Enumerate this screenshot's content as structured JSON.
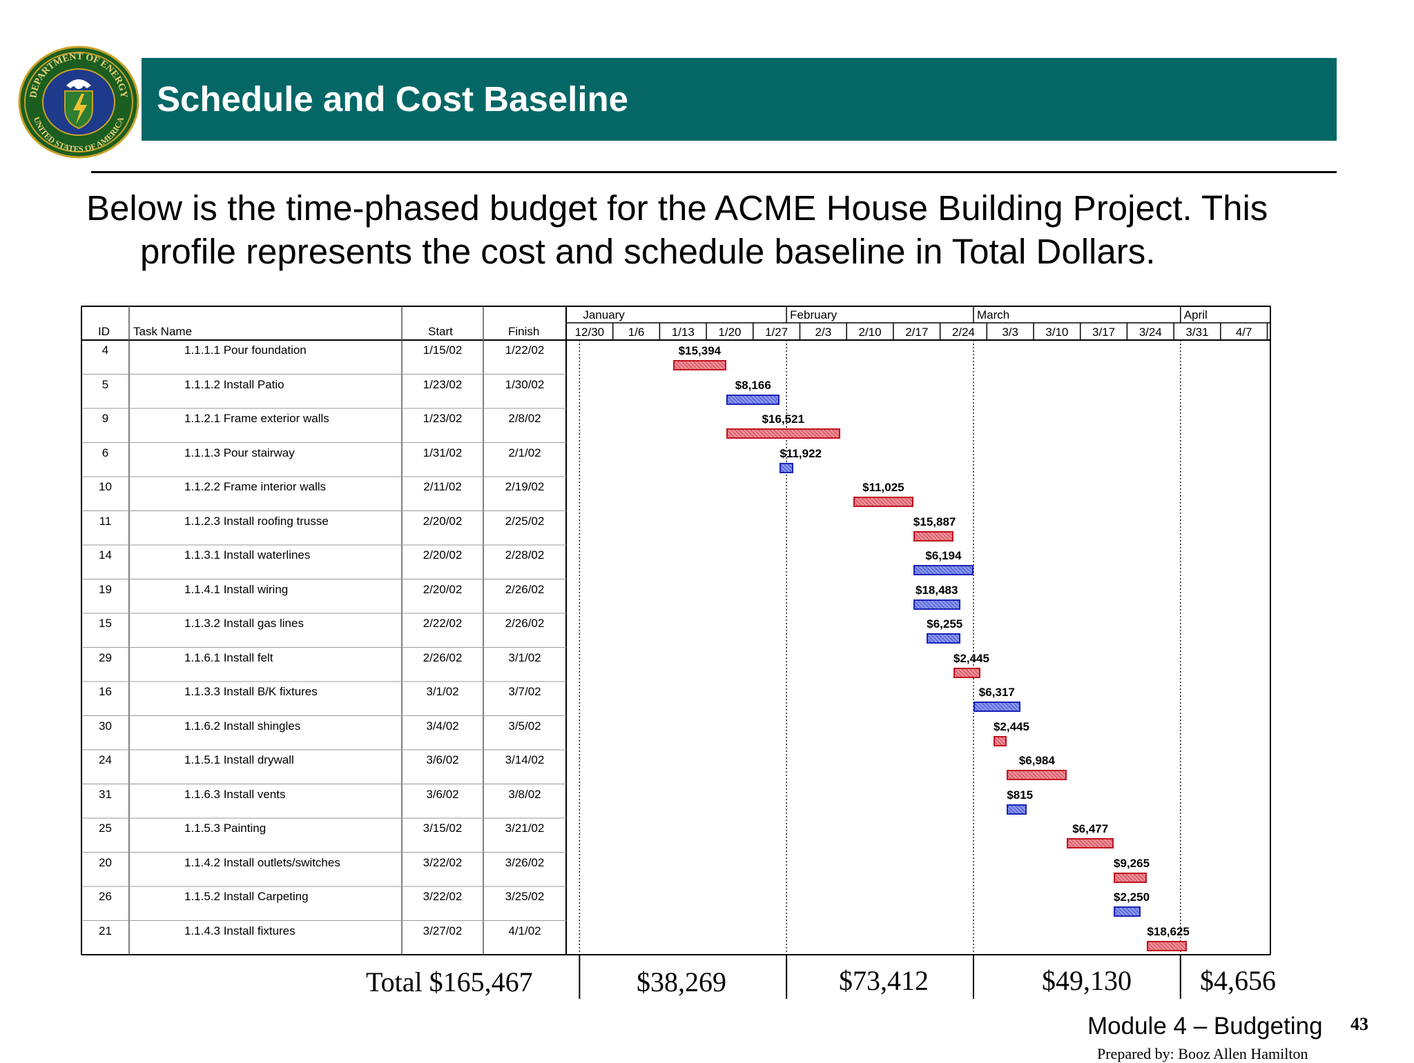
{
  "slide": {
    "title": "Schedule and Cost Baseline",
    "intro_line1": "Below is the time-phased budget for the ACME House Building Project.  This",
    "intro_line2": "profile represents the cost and schedule baseline in Total Dollars.",
    "seal_text_top": "DEPARTMENT OF ENERGY",
    "seal_text_bottom": "UNITED STATES OF AMERICA",
    "footer_module": "Module 4 – Budgeting",
    "footer_page": "43",
    "footer_prepared": "Prepared by: Booz Allen Hamilton",
    "colors": {
      "title_bar": "#046766",
      "red_bar": "#e0606b",
      "blue_bar": "#5a6ae0"
    }
  },
  "gantt": {
    "headers": {
      "id": "ID",
      "task": "Task Name",
      "start": "Start",
      "finish": "Finish"
    },
    "months": [
      "January",
      "February",
      "March",
      "April"
    ],
    "weeks": [
      "12/30",
      "1/6",
      "1/13",
      "1/20",
      "1/27",
      "2/3",
      "2/10",
      "2/17",
      "2/24",
      "3/3",
      "3/10",
      "3/17",
      "3/24",
      "3/31",
      "4/7"
    ],
    "rows": [
      {
        "id": "4",
        "task": "1.1.1.1 Pour foundation",
        "start": "1/15/02",
        "finish": "1/22/02",
        "cost": "$15,394",
        "color": "red"
      },
      {
        "id": "5",
        "task": "1.1.1.2 Install Patio",
        "start": "1/23/02",
        "finish": "1/30/02",
        "cost": "$8,166",
        "color": "blue"
      },
      {
        "id": "9",
        "task": "1.1.2.1 Frame exterior walls",
        "start": "1/23/02",
        "finish": "2/8/02",
        "cost": "$16,521",
        "color": "red"
      },
      {
        "id": "6",
        "task": "1.1.1.3 Pour stairway",
        "start": "1/31/02",
        "finish": "2/1/02",
        "cost": "$11,922",
        "color": "blue"
      },
      {
        "id": "10",
        "task": "1.1.2.2 Frame interior walls",
        "start": "2/11/02",
        "finish": "2/19/02",
        "cost": "$11,025",
        "color": "red"
      },
      {
        "id": "11",
        "task": "1.1.2.3 Install roofing trusse",
        "start": "2/20/02",
        "finish": "2/25/02",
        "cost": "$15,887",
        "color": "red"
      },
      {
        "id": "14",
        "task": "1.1.3.1 Install waterlines",
        "start": "2/20/02",
        "finish": "2/28/02",
        "cost": "$6,194",
        "color": "blue"
      },
      {
        "id": "19",
        "task": "1.1.4.1 Install wiring",
        "start": "2/20/02",
        "finish": "2/26/02",
        "cost": "$18,483",
        "color": "blue"
      },
      {
        "id": "15",
        "task": "1.1.3.2 Install gas lines",
        "start": "2/22/02",
        "finish": "2/26/02",
        "cost": "$6,255",
        "color": "blue"
      },
      {
        "id": "29",
        "task": "1.1.6.1 Install felt",
        "start": "2/26/02",
        "finish": "3/1/02",
        "cost": "$2,445",
        "color": "red"
      },
      {
        "id": "16",
        "task": "1.1.3.3 Install B/K fixtures",
        "start": "3/1/02",
        "finish": "3/7/02",
        "cost": "$6,317",
        "color": "blue"
      },
      {
        "id": "30",
        "task": "1.1.6.2 Install shingles",
        "start": "3/4/02",
        "finish": "3/5/02",
        "cost": "$2,445",
        "color": "red"
      },
      {
        "id": "24",
        "task": "1.1.5.1 Install drywall",
        "start": "3/6/02",
        "finish": "3/14/02",
        "cost": "$6,984",
        "color": "red"
      },
      {
        "id": "31",
        "task": "1.1.6.3 Install vents",
        "start": "3/6/02",
        "finish": "3/8/02",
        "cost": "$815",
        "color": "blue"
      },
      {
        "id": "25",
        "task": "1.1.5.3 Painting",
        "start": "3/15/02",
        "finish": "3/21/02",
        "cost": "$6,477",
        "color": "red"
      },
      {
        "id": "20",
        "task": "1.1.4.2 Install outlets/switches",
        "start": "3/22/02",
        "finish": "3/26/02",
        "cost": "$9,265",
        "color": "red"
      },
      {
        "id": "26",
        "task": "1.1.5.2 Install Carpeting",
        "start": "3/22/02",
        "finish": "3/25/02",
        "cost": "$2,250",
        "color": "blue"
      },
      {
        "id": "21",
        "task": "1.1.4.3 Install fixtures",
        "start": "3/27/02",
        "finish": "4/1/02",
        "cost": "$18,625",
        "color": "red"
      }
    ],
    "totals": {
      "total": "Total $165,467",
      "january": "$38,269",
      "february": "$73,412",
      "march": "$49,130",
      "april": "$4,656"
    }
  }
}
